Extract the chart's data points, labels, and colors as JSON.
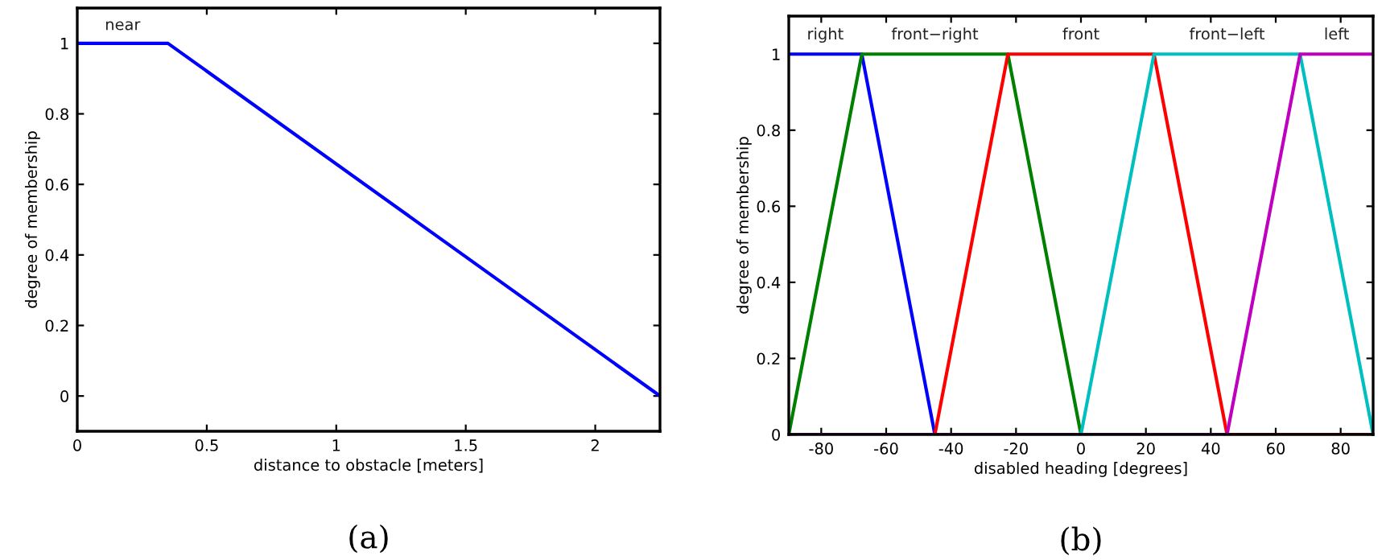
{
  "chart_data": [
    {
      "type": "line",
      "xlabel": "distance to obstacle [meters]",
      "ylabel": "degree of membership",
      "annotations": [
        "(a)"
      ],
      "series": [
        {
          "name": "near",
          "color": "#0000ff",
          "x": [
            0,
            0.35,
            2.25
          ],
          "values": [
            1,
            1,
            0
          ]
        }
      ],
      "xlim": [
        0,
        2.25
      ],
      "xticks": [
        0,
        0.5,
        1,
        1.5,
        2
      ],
      "ylim": [
        -0.1,
        1.1
      ],
      "yticks": [
        0,
        0.2,
        0.4,
        0.6,
        0.8,
        1
      ],
      "grid": false,
      "legend": false
    },
    {
      "type": "line",
      "xlabel": "disabled heading [degrees]",
      "ylabel": "degree of membership",
      "annotations": [
        "(b)"
      ],
      "series": [
        {
          "name": "right",
          "color": "#0000ff",
          "x": [
            -90,
            -67.5,
            -45,
            90
          ],
          "values": [
            1,
            1,
            0,
            0
          ]
        },
        {
          "name": "front−right",
          "color": "#008000",
          "x": [
            -90,
            -67.5,
            -22.5,
            0,
            90
          ],
          "values": [
            0,
            1,
            1,
            0,
            0
          ]
        },
        {
          "name": "front",
          "color": "#ff0000",
          "x": [
            -90,
            -45,
            -22.5,
            22.5,
            45,
            90
          ],
          "values": [
            0,
            0,
            1,
            1,
            0,
            0
          ]
        },
        {
          "name": "front−left",
          "color": "#00bfbf",
          "x": [
            -90,
            0,
            22.5,
            67.5,
            90
          ],
          "values": [
            0,
            0,
            1,
            1,
            0
          ]
        },
        {
          "name": "left",
          "color": "#bf00bf",
          "x": [
            -90,
            45,
            67.5,
            90
          ],
          "values": [
            0,
            0,
            1,
            1
          ]
        }
      ],
      "xlim": [
        -90,
        90
      ],
      "xticks": [
        -80,
        -60,
        -40,
        -20,
        0,
        20,
        40,
        60,
        80
      ],
      "ylim": [
        0,
        1.1
      ],
      "yticks": [
        0,
        0.2,
        0.4,
        0.6,
        0.8,
        1
      ],
      "grid": false,
      "legend": false
    }
  ]
}
